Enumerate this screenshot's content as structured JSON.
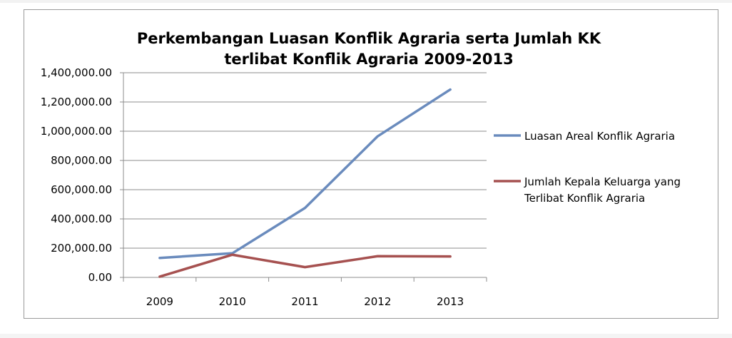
{
  "chart_data": {
    "type": "line",
    "title_lines": [
      "Perkembangan Luasan Konflik Agraria serta Jumlah KK",
      "terlibat Konflik Agraria 2009-2013"
    ],
    "categories": [
      "2009",
      "2010",
      "2011",
      "2012",
      "2013"
    ],
    "ylim": [
      0,
      1400000
    ],
    "y_ticks": [
      0,
      200000,
      400000,
      600000,
      800000,
      1000000,
      1200000,
      1400000
    ],
    "y_tick_labels": [
      "0.00",
      "200,000.00",
      "400,000.00",
      "600,000.00",
      "800,000.00",
      "1,000,000.00",
      "1,200,000.00",
      "1,400,000.00"
    ],
    "grid": true,
    "legend_position": "right",
    "series": [
      {
        "name": "Luasan Areal Konflik Agraria",
        "color": "#6a8bbd",
        "values": [
          133000,
          165000,
          475000,
          965000,
          1285000
        ]
      },
      {
        "name": "Jumlah Kepala Keluarga yang Terlibat Konflik Agraria",
        "name_lines": [
          "Jumlah Kepala Keluarga yang",
          "Terlibat Konflik Agraria"
        ],
        "color": "#a65150",
        "values": [
          5000,
          155000,
          70000,
          145000,
          143000
        ]
      }
    ]
  }
}
